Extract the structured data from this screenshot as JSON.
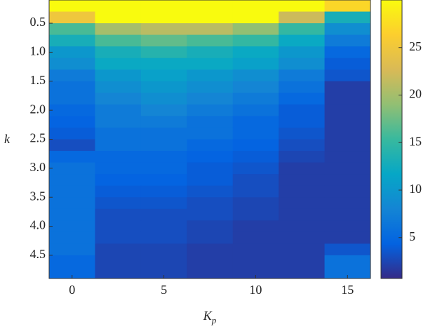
{
  "chart_data": {
    "type": "heatmap",
    "xlabel": "K",
    "xlabel_sub": "p",
    "ylabel": "k",
    "x": [
      0,
      2.5,
      5,
      7.5,
      10,
      12.5,
      15
    ],
    "y": [
      0.2,
      0.4,
      0.6,
      0.8,
      1.0,
      1.2,
      1.4,
      1.6,
      1.8,
      2.0,
      2.2,
      2.4,
      2.6,
      2.8,
      3.0,
      3.2,
      3.4,
      3.6,
      3.8,
      4.0,
      4.2,
      4.4,
      4.6,
      4.8
    ],
    "z": [
      [
        30,
        30,
        30,
        30,
        30,
        30,
        27
      ],
      [
        25,
        30,
        30,
        30,
        30,
        22,
        13
      ],
      [
        16,
        20,
        21,
        21,
        19,
        15,
        9
      ],
      [
        13,
        16,
        17,
        16,
        15,
        12,
        7
      ],
      [
        10,
        13,
        14,
        13,
        12,
        10,
        5
      ],
      [
        9,
        12,
        12,
        12,
        11,
        9,
        4
      ],
      [
        7,
        10,
        11,
        10,
        9,
        7,
        3.5
      ],
      [
        6,
        9,
        10,
        9,
        8,
        6,
        2
      ],
      [
        6,
        8,
        9,
        8,
        7,
        5,
        2
      ],
      [
        5,
        7,
        8,
        7,
        6,
        4,
        2
      ],
      [
        4.5,
        7,
        7,
        6,
        5,
        4,
        2
      ],
      [
        4,
        6,
        6,
        6,
        5,
        3.5,
        2
      ],
      [
        3,
        6,
        6,
        5,
        4.5,
        3,
        2
      ],
      [
        5,
        5,
        5,
        4.5,
        4,
        2.5,
        2
      ],
      [
        6,
        5,
        5,
        4,
        3.5,
        2,
        2
      ],
      [
        6,
        4.5,
        4.5,
        4,
        3,
        2,
        2
      ],
      [
        6,
        4,
        4,
        3.5,
        3,
        2,
        2
      ],
      [
        6,
        3.5,
        3.5,
        3,
        2.5,
        2,
        2
      ],
      [
        6,
        3,
        3,
        3,
        2.5,
        2,
        2
      ],
      [
        6,
        3,
        3,
        2.5,
        2,
        2,
        2
      ],
      [
        6,
        3,
        3,
        2.5,
        2,
        2,
        2
      ],
      [
        6,
        2.5,
        2.5,
        2,
        2,
        2,
        3.5
      ],
      [
        5,
        2.5,
        2.5,
        2,
        2,
        2,
        6
      ],
      [
        5,
        2.5,
        2.5,
        2,
        2,
        2,
        6
      ]
    ],
    "xlim": [
      -1.25,
      16.25
    ],
    "xticks": [
      0,
      5,
      10,
      15
    ],
    "ylim": [
      4.9,
      0.1
    ],
    "yticks": [
      0.5,
      {
        "value": 1,
        "label": "1.0"
      },
      1.5,
      {
        "value": 2,
        "label": "2.0"
      },
      2.5,
      {
        "value": 3,
        "label": "3.0"
      },
      3.5,
      {
        "value": 4,
        "label": "4.0"
      },
      4.5
    ],
    "colormap": "parula",
    "clim": [
      0.7,
      30
    ],
    "cticks": [
      5,
      10,
      15,
      20,
      25
    ]
  }
}
